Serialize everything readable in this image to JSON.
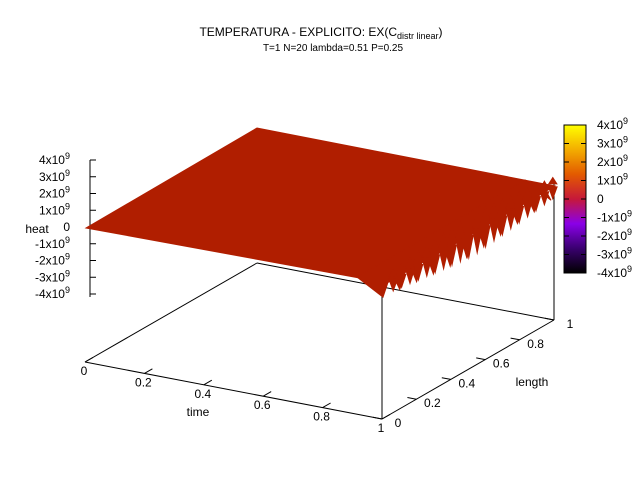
{
  "chart_data": {
    "type": "surface",
    "title_main": "TEMPERATURA - EXPLICITO: EX(C",
    "title_sub": "distr linear",
    "title_close": ")",
    "subtitle": "T=1 N=20 lambda=0.51 P=0.25",
    "xlabel": "time",
    "ylabel": "length",
    "zlabel": "heat",
    "xlim": [
      0,
      1
    ],
    "ylim": [
      0,
      1
    ],
    "zlim": [
      -4000000000,
      4000000000
    ],
    "x_ticks": [
      {
        "value": 0,
        "label": "0"
      },
      {
        "value": 0.2,
        "label": "0.2"
      },
      {
        "value": 0.4,
        "label": "0.4"
      },
      {
        "value": 0.6,
        "label": "0.6"
      },
      {
        "value": 0.8,
        "label": "0.8"
      },
      {
        "value": 1,
        "label": "1"
      }
    ],
    "y_ticks": [
      {
        "value": 0,
        "label": "0"
      },
      {
        "value": 0.2,
        "label": "0.2"
      },
      {
        "value": 0.4,
        "label": "0.4"
      },
      {
        "value": 0.6,
        "label": "0.6"
      },
      {
        "value": 0.8,
        "label": "0.8"
      },
      {
        "value": 1,
        "label": "1"
      }
    ],
    "z_ticks": [
      {
        "value": 4000000000,
        "base": "4x10",
        "exp": "9"
      },
      {
        "value": 3000000000,
        "base": "3x10",
        "exp": "9"
      },
      {
        "value": 2000000000,
        "base": "2x10",
        "exp": "9"
      },
      {
        "value": 1000000000,
        "base": "1x10",
        "exp": "9"
      },
      {
        "value": 0,
        "base": "0",
        "exp": ""
      },
      {
        "value": -1000000000,
        "base": "-1x10",
        "exp": "9"
      },
      {
        "value": -2000000000,
        "base": "-2x10",
        "exp": "9"
      },
      {
        "value": -3000000000,
        "base": "-3x10",
        "exp": "9"
      },
      {
        "value": -4000000000,
        "base": "-4x10",
        "exp": "9"
      }
    ],
    "colorbar_ticks": [
      {
        "value": 4000000000,
        "base": "4x10",
        "exp": "9"
      },
      {
        "value": 3000000000,
        "base": "3x10",
        "exp": "9"
      },
      {
        "value": 2000000000,
        "base": "2x10",
        "exp": "9"
      },
      {
        "value": 1000000000,
        "base": "1x10",
        "exp": "9"
      },
      {
        "value": 0,
        "base": "0",
        "exp": ""
      },
      {
        "value": -1000000000,
        "base": "-1x10",
        "exp": "9"
      },
      {
        "value": -2000000000,
        "base": "-2x10",
        "exp": "9"
      },
      {
        "value": -3000000000,
        "base": "-3x10",
        "exp": "9"
      },
      {
        "value": -4000000000,
        "base": "-4x10",
        "exp": "9"
      }
    ],
    "colormap": [
      "#000000",
      "#3a0070",
      "#8a00e8",
      "#c6183a",
      "#e35a00",
      "#f3ad00",
      "#ffff00"
    ],
    "surface_color": "#b01e00",
    "surface": {
      "description_free": true,
      "flat_value": 0,
      "oscillation_start_time": 1,
      "oscillation_amplitude": 1000000000
    }
  }
}
